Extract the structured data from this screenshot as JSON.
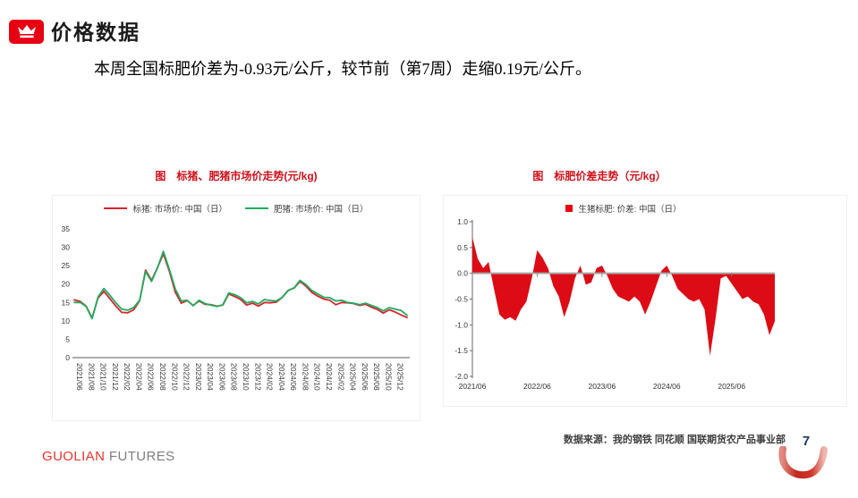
{
  "header": {
    "title": "价格数据"
  },
  "subtitle": "本周全国标肥价差为-0.93元/公斤，较节前（第7周）走缩0.19元/公斤。",
  "footer": {
    "brand_primary": "GUOLIAN",
    "brand_secondary": "FUTURES",
    "source_note": "数据来源：我的钢铁 同花顺 国联期货农产品事业部",
    "page_number": "7"
  },
  "colors": {
    "brand_red": "#e60012",
    "chart_title_red": "#d0111b",
    "line_red": "#d9232e",
    "line_green": "#1fad5f",
    "area_red": "#dd0b15",
    "zero_line": "#a6a6a6",
    "axis_text": "#333333",
    "page_number_navy": "#1f3864"
  },
  "chart_data": [
    {
      "type": "line",
      "title": "图　标猪、肥猪市场价走势(元/kg)",
      "x_start": "2021/06",
      "x_months": 57,
      "x_tick_labels": [
        "2021/06",
        "2021/08",
        "2021/10",
        "2021/12",
        "2022/02",
        "2022/04",
        "2022/06",
        "2022/08",
        "2022/10",
        "2022/12",
        "2023/02",
        "2023/04",
        "2023/06",
        "2023/08",
        "2023/10",
        "2023/12",
        "2024/02",
        "2024/04",
        "2024/06",
        "2024/08",
        "2024/10",
        "2024/12",
        "2025/02",
        "2025/04",
        "2025/06",
        "2025/08",
        "2025/10",
        "2025/12"
      ],
      "x_tick_positions": [
        0,
        2,
        4,
        6,
        8,
        10,
        12,
        14,
        16,
        18,
        20,
        22,
        24,
        26,
        28,
        30,
        32,
        34,
        36,
        38,
        40,
        42,
        44,
        46,
        48,
        50,
        52,
        54
      ],
      "ylim": [
        0,
        35
      ],
      "yticks": [
        0,
        5,
        10,
        15,
        20,
        25,
        30,
        35
      ],
      "series": [
        {
          "name": "标猪: 市场价: 中国（日）",
          "color": "#d9232e",
          "values": [
            15.7,
            15.3,
            14.0,
            10.8,
            16.2,
            18.0,
            16.0,
            14.0,
            12.3,
            12.2,
            13.0,
            15.5,
            23.8,
            21.0,
            24.5,
            28.2,
            23.5,
            17.8,
            14.8,
            15.5,
            14.2,
            15.4,
            14.5,
            14.4,
            14.0,
            14.3,
            17.3,
            16.6,
            15.8,
            14.3,
            14.8,
            14.0,
            15.0,
            14.9,
            15.1,
            16.4,
            18.3,
            18.9,
            20.7,
            19.4,
            17.7,
            16.7,
            15.9,
            15.6,
            14.4,
            15.0,
            14.9,
            14.7,
            14.2,
            14.5,
            13.7,
            13.1,
            12.1,
            13.0,
            12.4,
            11.6,
            10.9
          ]
        },
        {
          "name": "肥猪: 市场价: 中国（日）",
          "color": "#1fad5f",
          "values": [
            15.0,
            15.0,
            13.9,
            10.6,
            16.5,
            18.8,
            16.9,
            14.9,
            13.2,
            12.9,
            13.6,
            15.6,
            23.4,
            20.7,
            24.4,
            28.9,
            24.0,
            18.7,
            15.4,
            15.6,
            14.1,
            15.6,
            14.7,
            14.3,
            13.9,
            14.4,
            17.6,
            17.1,
            16.3,
            14.9,
            15.3,
            14.6,
            15.8,
            15.5,
            15.4,
            16.4,
            18.2,
            19.0,
            21.0,
            19.8,
            18.2,
            17.3,
            16.4,
            16.3,
            15.4,
            15.6,
            15.0,
            14.8,
            14.4,
            14.8,
            14.2,
            13.6,
            12.7,
            13.6,
            13.2,
            12.8,
            11.5
          ]
        }
      ]
    },
    {
      "type": "area",
      "title": "图　标肥价差走势（元/kg）",
      "legend": "生猪标肥: 价差: 中国（日）",
      "x_start": "2021/06",
      "x_months": 57,
      "x_tick_labels": [
        "2021/06",
        "2022/06",
        "2023/06",
        "2024/06",
        "2025/06"
      ],
      "x_tick_positions": [
        0,
        12,
        24,
        36,
        48
      ],
      "ylim": [
        -2.0,
        1.0
      ],
      "yticks": [
        1.0,
        0.5,
        0.0,
        -0.5,
        -1.0,
        -1.5,
        -2.0
      ],
      "fill_color": "#dd0b15",
      "values": [
        0.7,
        0.28,
        0.1,
        0.22,
        -0.3,
        -0.8,
        -0.9,
        -0.85,
        -0.92,
        -0.7,
        -0.55,
        -0.1,
        0.45,
        0.3,
        0.1,
        -0.25,
        -0.45,
        -0.85,
        -0.55,
        -0.1,
        0.15,
        -0.22,
        -0.18,
        0.1,
        0.15,
        -0.05,
        -0.3,
        -0.45,
        -0.5,
        -0.55,
        -0.45,
        -0.55,
        -0.8,
        -0.55,
        -0.25,
        0.05,
        0.15,
        -0.05,
        -0.3,
        -0.4,
        -0.5,
        -0.55,
        -0.5,
        -0.7,
        -1.6,
        -0.9,
        -0.1,
        -0.05,
        -0.2,
        -0.35,
        -0.5,
        -0.45,
        -0.55,
        -0.6,
        -0.8,
        -1.2,
        -0.93
      ]
    }
  ]
}
